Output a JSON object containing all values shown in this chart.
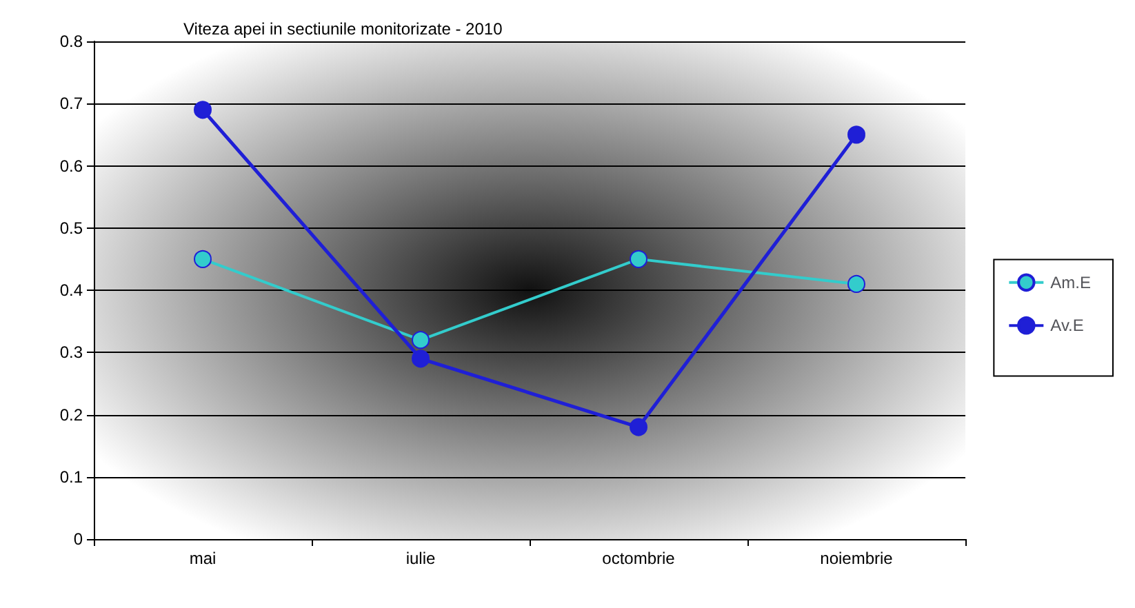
{
  "chart_data": {
    "type": "line",
    "title": "Viteza apei in sectiunile monitorizate - 2010",
    "categories": [
      "mai",
      "iulie",
      "octombrie",
      "noiembrie"
    ],
    "series": [
      {
        "name": "Am.E",
        "color": "#33cccc",
        "values": [
          0.45,
          0.32,
          0.45,
          0.41
        ]
      },
      {
        "name": "Av.E",
        "color": "#1f1fd6",
        "values": [
          0.69,
          0.29,
          0.18,
          0.65
        ]
      }
    ],
    "ylim": [
      0,
      0.8
    ],
    "yticks": [
      0,
      0.1,
      0.2,
      0.3,
      0.4,
      0.5,
      0.6,
      0.7,
      0.8
    ],
    "grid": "y",
    "legend": "right",
    "marker": "circle",
    "line_style": "solid"
  }
}
